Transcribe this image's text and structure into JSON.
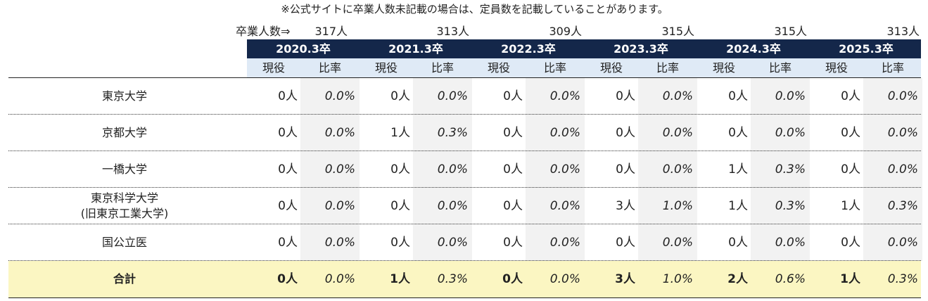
{
  "note": "※公式サイトに卒業人数未記載の場合は、定員数を記載していることがあります。",
  "graduates_label": "卒業人数⇒",
  "graduates": [
    "317人",
    "313人",
    "309人",
    "315人",
    "315人",
    "313人"
  ],
  "years": [
    "2020.3卒",
    "2021.3卒",
    "2022.3卒",
    "2023.3卒",
    "2024.3卒",
    "2025.3卒"
  ],
  "sub_headers": {
    "current": "現役",
    "ratio": "比率"
  },
  "rows": [
    {
      "name": [
        "東京大学"
      ],
      "values": [
        [
          "0人",
          "0.0%"
        ],
        [
          "0人",
          "0.0%"
        ],
        [
          "0人",
          "0.0%"
        ],
        [
          "0人",
          "0.0%"
        ],
        [
          "0人",
          "0.0%"
        ],
        [
          "0人",
          "0.0%"
        ]
      ]
    },
    {
      "name": [
        "京都大学"
      ],
      "values": [
        [
          "0人",
          "0.0%"
        ],
        [
          "1人",
          "0.3%"
        ],
        [
          "0人",
          "0.0%"
        ],
        [
          "0人",
          "0.0%"
        ],
        [
          "0人",
          "0.0%"
        ],
        [
          "0人",
          "0.0%"
        ]
      ]
    },
    {
      "name": [
        "一橋大学"
      ],
      "values": [
        [
          "0人",
          "0.0%"
        ],
        [
          "0人",
          "0.0%"
        ],
        [
          "0人",
          "0.0%"
        ],
        [
          "0人",
          "0.0%"
        ],
        [
          "1人",
          "0.3%"
        ],
        [
          "0人",
          "0.0%"
        ]
      ]
    },
    {
      "name": [
        "東京科学大学",
        "(旧東京工業大学)"
      ],
      "values": [
        [
          "0人",
          "0.0%"
        ],
        [
          "0人",
          "0.0%"
        ],
        [
          "0人",
          "0.0%"
        ],
        [
          "3人",
          "1.0%"
        ],
        [
          "1人",
          "0.3%"
        ],
        [
          "1人",
          "0.3%"
        ]
      ]
    },
    {
      "name": [
        "国公立医"
      ],
      "values": [
        [
          "0人",
          "0.0%"
        ],
        [
          "0人",
          "0.0%"
        ],
        [
          "0人",
          "0.0%"
        ],
        [
          "0人",
          "0.0%"
        ],
        [
          "0人",
          "0.0%"
        ],
        [
          "0人",
          "0.0%"
        ]
      ]
    }
  ],
  "total": {
    "name": [
      "合計"
    ],
    "values": [
      [
        "0人",
        "0.0%"
      ],
      [
        "1人",
        "0.3%"
      ],
      [
        "0人",
        "0.0%"
      ],
      [
        "3人",
        "1.0%"
      ],
      [
        "2人",
        "0.6%"
      ],
      [
        "1人",
        "0.3%"
      ]
    ]
  },
  "colors": {
    "header_bg": "#14274a",
    "subheader_bg": "#dfeaf6",
    "total_bg": "#fbf6c2",
    "shade": "#f2f2f2"
  }
}
